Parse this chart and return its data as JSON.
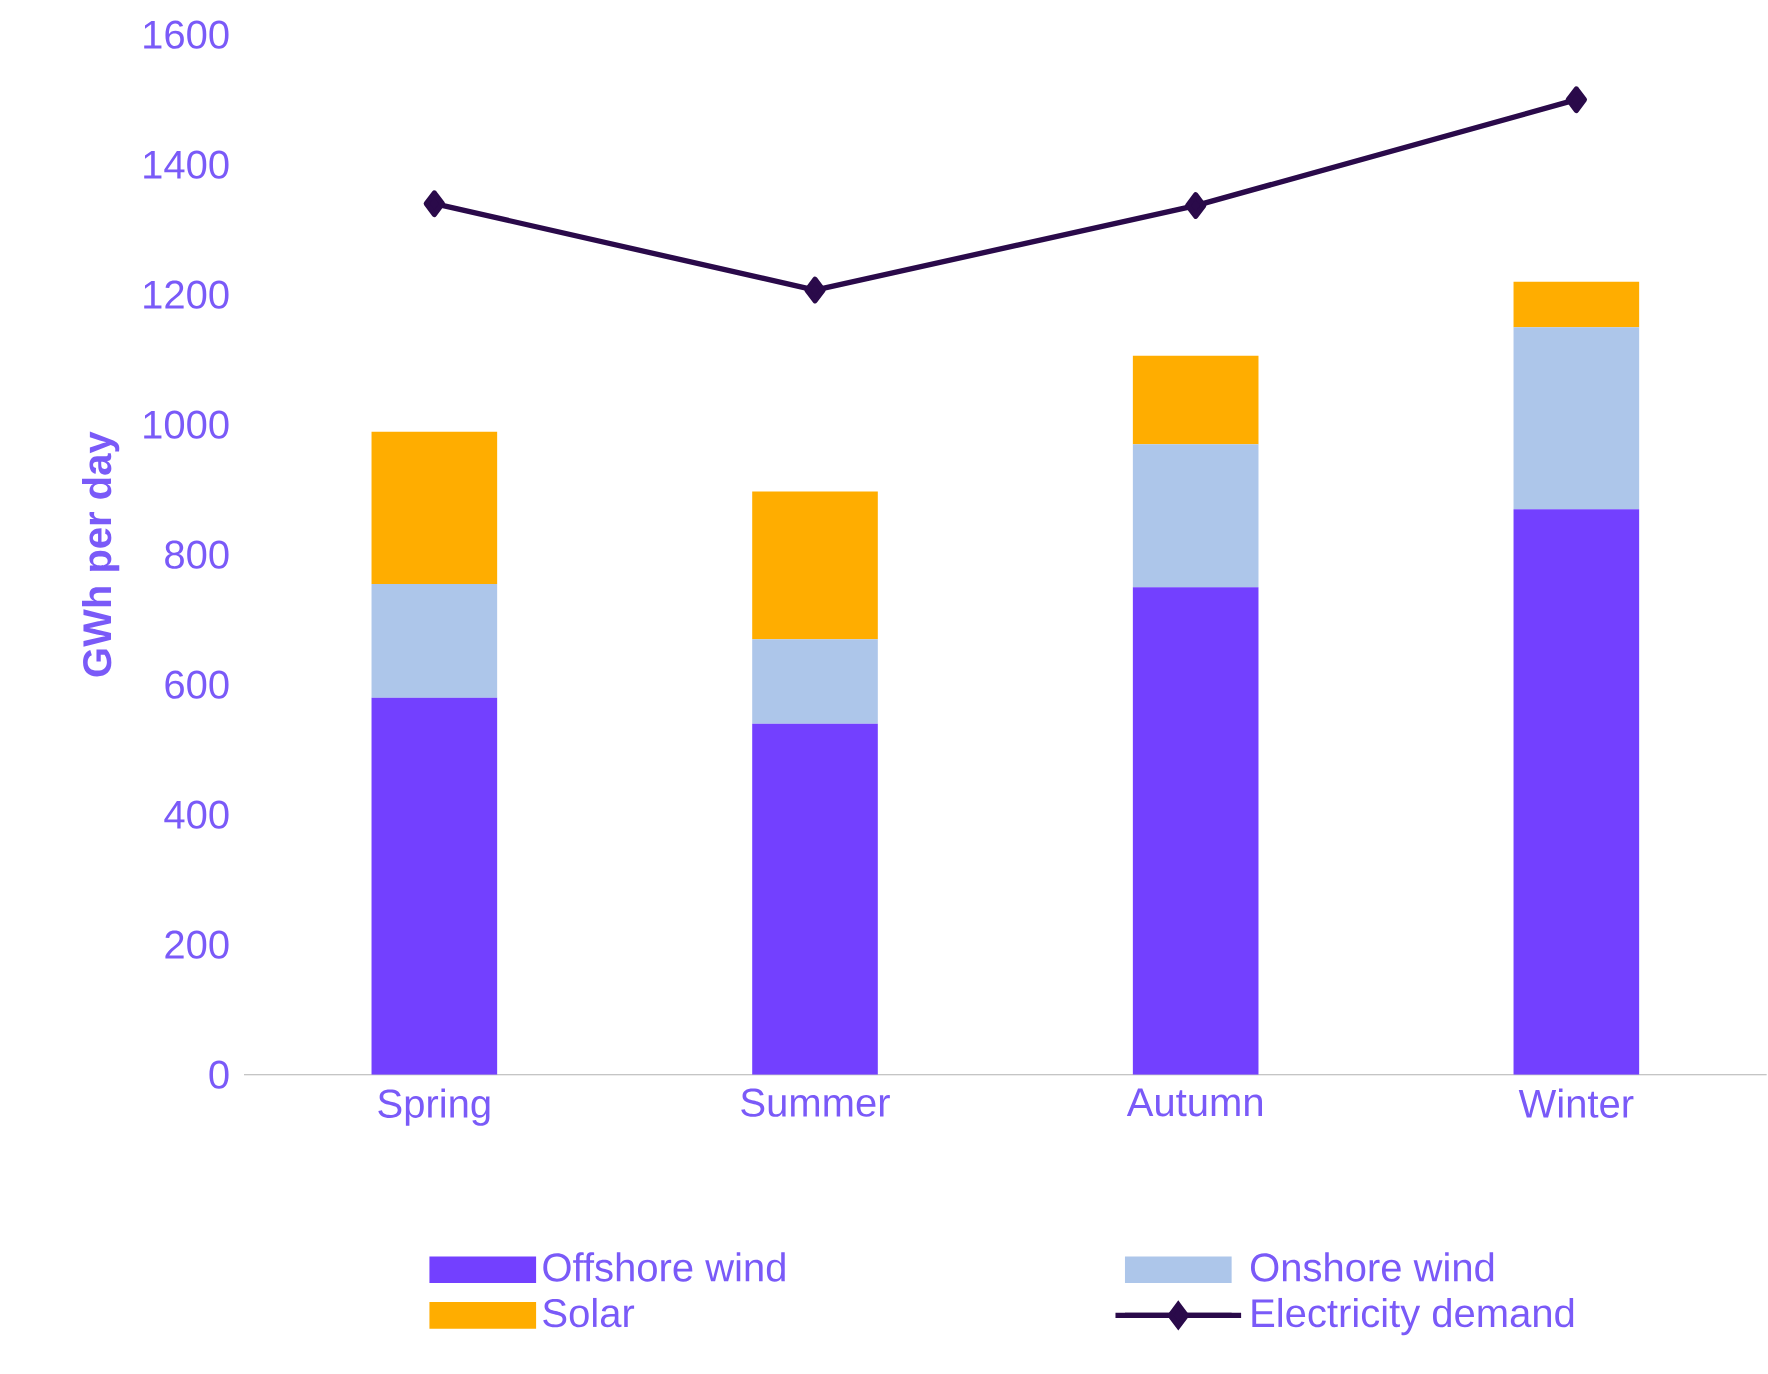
{
  "chart_data": {
    "type": "bar",
    "stacked": true,
    "ylabel": "GWh per day",
    "categories": [
      "Spring",
      "Summer",
      "Autumn",
      "Winter"
    ],
    "series": [
      {
        "name": "Offshore wind",
        "color": "#7340ff",
        "values": [
          580,
          540,
          750,
          870
        ]
      },
      {
        "name": "Onshore wind",
        "color": "#adc6ea",
        "values": [
          175,
          130,
          220,
          280
        ]
      },
      {
        "name": "Solar",
        "color": "#ffad00",
        "values": [
          234,
          227,
          136,
          70
        ]
      },
      {
        "name": "Electricity demand",
        "type": "line",
        "color": "#2a0a4a",
        "marker": "diamond",
        "line_style": "solid",
        "values": [
          1340,
          1207,
          1337,
          1500
        ]
      }
    ],
    "ylim": [
      0,
      1600
    ],
    "yticks": [
      0,
      200,
      400,
      600,
      800,
      1000,
      1200,
      1400,
      1600
    ],
    "legend": "bottom"
  }
}
